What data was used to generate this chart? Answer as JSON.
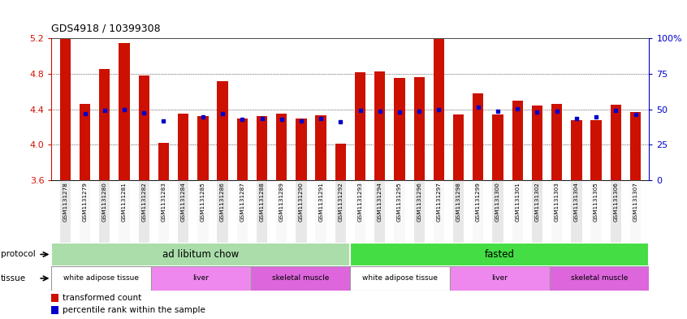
{
  "title": "GDS4918 / 10399308",
  "samples": [
    "GSM1131278",
    "GSM1131279",
    "GSM1131280",
    "GSM1131281",
    "GSM1131282",
    "GSM1131283",
    "GSM1131284",
    "GSM1131285",
    "GSM1131286",
    "GSM1131287",
    "GSM1131288",
    "GSM1131289",
    "GSM1131290",
    "GSM1131291",
    "GSM1131292",
    "GSM1131293",
    "GSM1131294",
    "GSM1131295",
    "GSM1131296",
    "GSM1131297",
    "GSM1131298",
    "GSM1131299",
    "GSM1131300",
    "GSM1131301",
    "GSM1131302",
    "GSM1131303",
    "GSM1131304",
    "GSM1131305",
    "GSM1131306",
    "GSM1131307"
  ],
  "red_values": [
    5.19,
    4.46,
    4.85,
    5.15,
    4.78,
    4.02,
    4.35,
    4.32,
    4.72,
    4.3,
    4.32,
    4.35,
    4.3,
    4.33,
    4.01,
    4.82,
    4.83,
    4.75,
    4.76,
    5.19,
    4.34,
    4.58,
    4.34,
    4.5,
    4.44,
    4.46,
    4.28,
    4.28,
    4.45,
    4.37
  ],
  "blue_values": [
    null,
    4.35,
    4.39,
    4.4,
    4.36,
    4.27,
    null,
    4.31,
    4.35,
    4.29,
    4.3,
    4.29,
    4.27,
    4.3,
    4.26,
    4.39,
    4.38,
    4.37,
    4.38,
    4.4,
    null,
    4.42,
    4.38,
    4.41,
    4.37,
    4.38,
    4.3,
    4.31,
    4.39,
    4.34
  ],
  "ymin": 3.6,
  "ymax": 5.2,
  "yticks_left": [
    3.6,
    4.0,
    4.4,
    4.8,
    5.2
  ],
  "bar_color": "#cc1100",
  "blue_color": "#0000cc",
  "protocol_spans": [
    {
      "start": 0,
      "end": 15,
      "label": "ad libitum chow",
      "color": "#aaddaa"
    },
    {
      "start": 15,
      "end": 30,
      "label": "fasted",
      "color": "#44dd44"
    }
  ],
  "tissue_spans": [
    {
      "start": 0,
      "end": 5,
      "label": "white adipose tissue",
      "color": "#ffffff"
    },
    {
      "start": 5,
      "end": 10,
      "label": "liver",
      "color": "#ee88ee"
    },
    {
      "start": 10,
      "end": 15,
      "label": "skeletal muscle",
      "color": "#dd66dd"
    },
    {
      "start": 15,
      "end": 20,
      "label": "white adipose tissue",
      "color": "#ffffff"
    },
    {
      "start": 20,
      "end": 25,
      "label": "liver",
      "color": "#ee88ee"
    },
    {
      "start": 25,
      "end": 30,
      "label": "skeletal muscle",
      "color": "#dd66dd"
    }
  ],
  "col_bg_even": "#e8e8e8",
  "col_bg_odd": "#f8f8f8"
}
